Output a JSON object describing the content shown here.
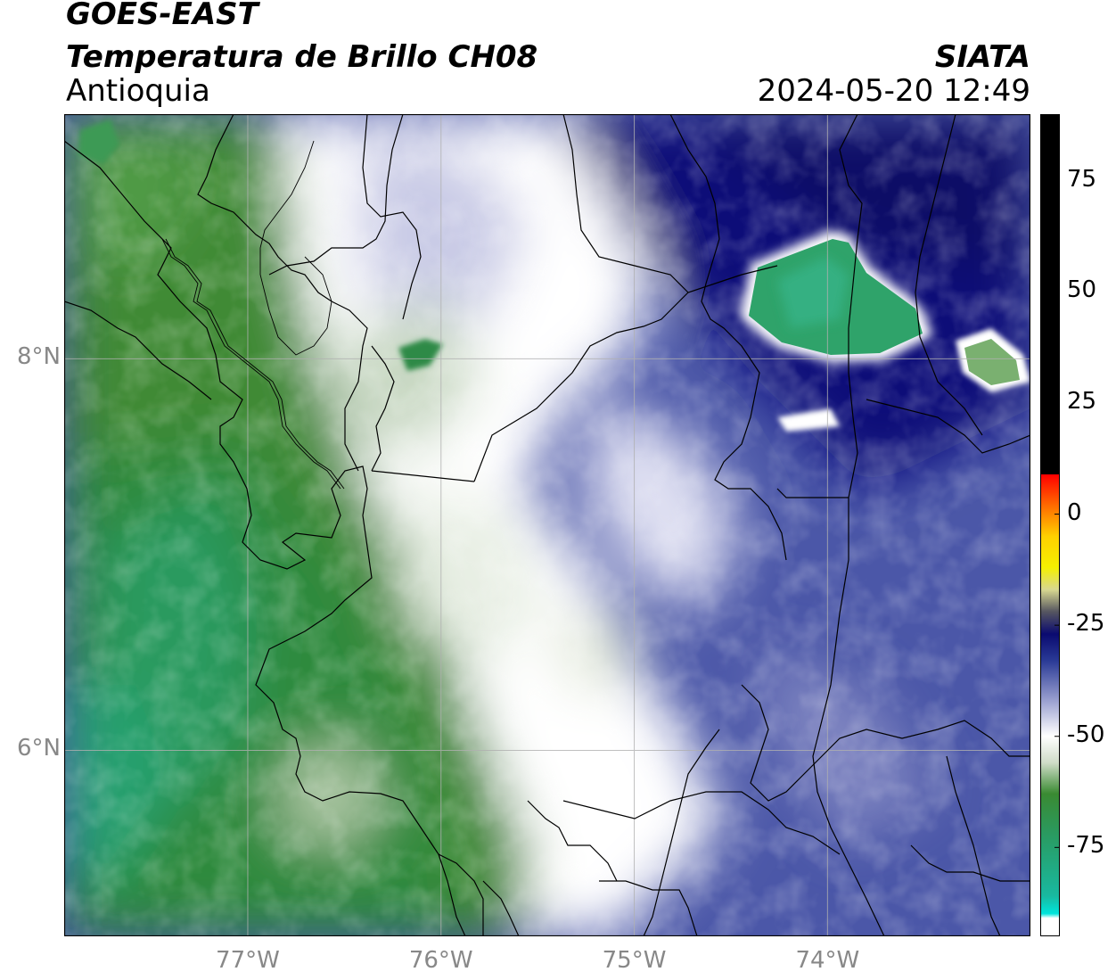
{
  "header": {
    "satellite": "GOES-EAST",
    "product": "Temperatura de Brillo CH08",
    "region": "Antioquia",
    "organization": "SIATA",
    "datetime": "2024-05-20 12:49"
  },
  "map": {
    "lon_range": [
      -77.95,
      -72.95
    ],
    "lat_range": [
      5.05,
      9.25
    ],
    "lon_ticks": [
      "77°W",
      "76°W",
      "75°W",
      "74°W"
    ],
    "lat_ticks": [
      "8°N",
      "6°N"
    ],
    "colors": {
      "warm_green": "#3a8a32",
      "teal": "#25a97a",
      "white": "#ffffff",
      "cold_blue": "#2a3a96",
      "deep_navy": "#0a0a6e",
      "border": "#000000",
      "grid": "#b0b0b0"
    }
  },
  "colorbar": {
    "range": [
      -95,
      90
    ],
    "ticks": [
      "75",
      "50",
      "25",
      "0",
      "-25",
      "-50",
      "-75"
    ],
    "stops": [
      {
        "value": 90,
        "color": "#000000"
      },
      {
        "value": 9,
        "color": "#000000"
      },
      {
        "value": 8.9,
        "color": "#ff0000"
      },
      {
        "value": 2,
        "color": "#ff6a00"
      },
      {
        "value": -5,
        "color": "#ffd000"
      },
      {
        "value": -12,
        "color": "#f5f000"
      },
      {
        "value": -17,
        "color": "#d8d890"
      },
      {
        "value": -22,
        "color": "#555560"
      },
      {
        "value": -27,
        "color": "#0a0a70"
      },
      {
        "value": -33,
        "color": "#2a3a96"
      },
      {
        "value": -42,
        "color": "#9aa0d0"
      },
      {
        "value": -50,
        "color": "#ffffff"
      },
      {
        "value": -56,
        "color": "#cfdcc8"
      },
      {
        "value": -63,
        "color": "#3a8a32"
      },
      {
        "value": -72,
        "color": "#2a9a60"
      },
      {
        "value": -86,
        "color": "#19b9a0"
      },
      {
        "value": -90,
        "color": "#00e5dc"
      },
      {
        "value": -91,
        "color": "#ffffff"
      },
      {
        "value": -95,
        "color": "#ffffff"
      }
    ]
  }
}
